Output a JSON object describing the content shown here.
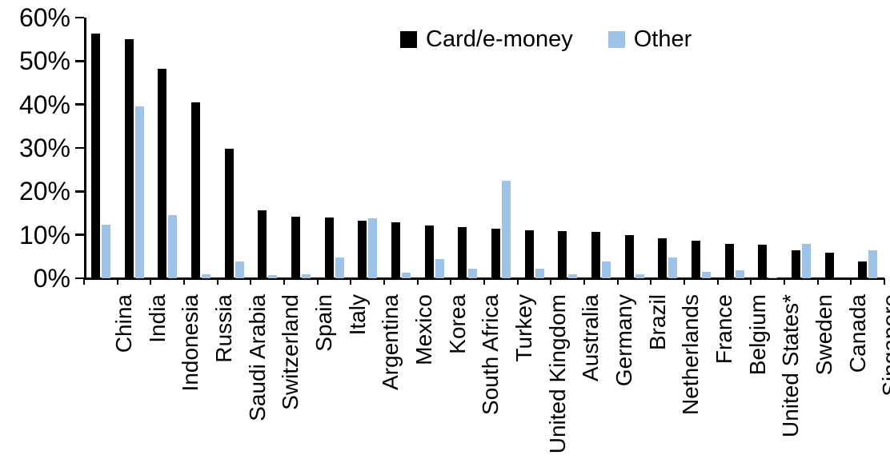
{
  "chart_data": {
    "type": "bar",
    "title": "",
    "xlabel": "",
    "ylabel": "",
    "categories": [
      "China",
      "India",
      "Indonesia",
      "Russia",
      "Saudi Arabia",
      "Switzerland",
      "Spain",
      "Italy",
      "Argentina",
      "Mexico",
      "Korea",
      "South Africa",
      "Turkey",
      "United Kingdom",
      "Australia",
      "Germany",
      "Brazil",
      "Netherlands",
      "France",
      "Belgium",
      "United States*",
      "Sweden",
      "Canada",
      "Singapore"
    ],
    "series": [
      {
        "name": "Card/e-money",
        "color": "#000000",
        "values": [
          56.4,
          55.1,
          48.3,
          40.5,
          29.9,
          15.6,
          14.1,
          13.9,
          13.2,
          12.8,
          12.2,
          11.7,
          11.5,
          11.1,
          10.9,
          10.6,
          9.9,
          9.2,
          8.6,
          7.9,
          7.8,
          6.4,
          5.8,
          3.8
        ]
      },
      {
        "name": "Other",
        "color": "#9DC3E6",
        "values": [
          12.3,
          39.6,
          14.5,
          1.0,
          3.8,
          0.7,
          0.9,
          4.7,
          13.8,
          1.2,
          4.5,
          2.3,
          22.5,
          2.2,
          0.9,
          3.8,
          1.0,
          4.7,
          1.4,
          1.9,
          0.2,
          8.0,
          0.0,
          6.5
        ]
      }
    ],
    "y_axis": {
      "unit": "%",
      "min": 0,
      "max": 60,
      "tick_step": 10,
      "tick_labels": [
        "0%",
        "10%",
        "20%",
        "30%",
        "40%",
        "50%",
        "60%"
      ]
    },
    "legend_position": "top-center",
    "grid": false,
    "background": "#ffffff",
    "axis_color": "#000000"
  }
}
